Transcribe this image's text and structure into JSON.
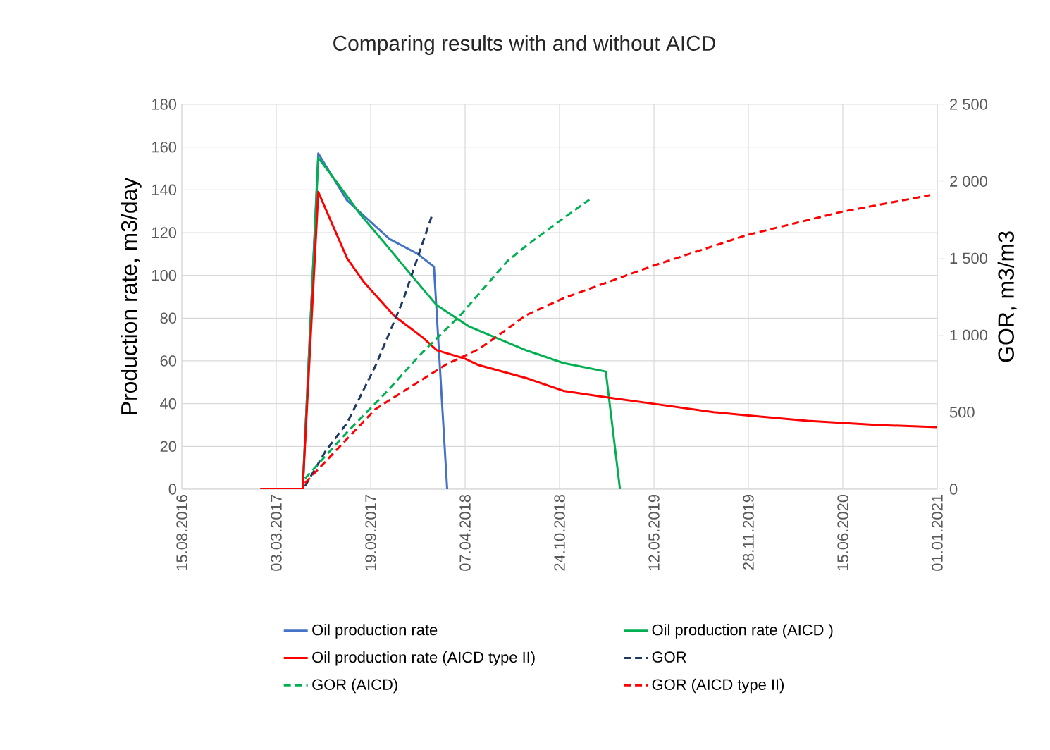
{
  "chart_data": {
    "type": "line",
    "title": "Comparing results with and without AICD",
    "ylabel": "Production rate, m3/day",
    "y2label": "GOR, m3/m3",
    "xlim": [
      "2016-08-15",
      "2021-01-01"
    ],
    "xticks": [
      {
        "value": "2016-08-15",
        "label": "15.08.2016"
      },
      {
        "value": "2017-03-03",
        "label": "03.03.2017"
      },
      {
        "value": "2017-09-19",
        "label": "19.09.2017"
      },
      {
        "value": "2018-04-07",
        "label": "07.04.2018"
      },
      {
        "value": "2018-10-24",
        "label": "24.10.2018"
      },
      {
        "value": "2019-05-12",
        "label": "12.05.2019"
      },
      {
        "value": "2019-11-28",
        "label": "28.11.2019"
      },
      {
        "value": "2020-06-15",
        "label": "15.06.2020"
      },
      {
        "value": "2021-01-01",
        "label": "01.01.2021"
      }
    ],
    "ylim": [
      0,
      180
    ],
    "yticks": [
      0,
      20,
      40,
      60,
      80,
      100,
      120,
      140,
      160,
      180
    ],
    "y2lim": [
      0,
      2500
    ],
    "y2ticks": [
      0,
      500,
      {
        "value": 1000,
        "label": "1 000"
      },
      {
        "value": 1500,
        "label": "1 500"
      },
      {
        "value": 2000,
        "label": "2 000"
      },
      {
        "value": 2500,
        "label": "2 500"
      }
    ],
    "grid": true,
    "legend": "bottom",
    "marker": "none",
    "series": [
      {
        "name": "Oil production rate",
        "color": "#4472c4",
        "line_style": "solid",
        "x": [
          "2017-04-28",
          "2017-05-31",
          "2017-07-31",
          "2017-09-09",
          "2017-10-29",
          "2017-12-28",
          "2018-01-31",
          "2018-02-28"
        ],
        "values": [
          0,
          157,
          135,
          127,
          117,
          110,
          104,
          0
        ]
      },
      {
        "name": "Oil production rate  (AICD )",
        "color": "#00b050",
        "line_style": "solid",
        "x": [
          "2017-04-28",
          "2017-05-31",
          "2017-07-11",
          "2017-08-30",
          "2017-10-19",
          "2017-12-18",
          "2018-02-06",
          "2018-04-16",
          "2018-08-14",
          "2018-11-01",
          "2019-01-30",
          "2019-03-01"
        ],
        "values": [
          0,
          155,
          143,
          128,
          115,
          99,
          86,
          76,
          65,
          59,
          55,
          0
        ]
      },
      {
        "name": "Oil production rate (AICD type II)",
        "color": "#ff0000",
        "line_style": "solid",
        "x": [
          "2017-01-28",
          "2017-04-28",
          "2017-05-31",
          "2017-07-31",
          "2017-09-04",
          "2017-11-08",
          "2018-01-07",
          "2018-02-06",
          "2018-04-07",
          "2018-05-06",
          "2018-08-14",
          "2018-11-01",
          "2019-01-30",
          "2019-05-09",
          "2019-09-15",
          "2019-11-24",
          "2020-04-01",
          "2020-08-29",
          "2020-12-31"
        ],
        "values": [
          0,
          0,
          139,
          108,
          97,
          81,
          71,
          65,
          61,
          58,
          52,
          46,
          43,
          40,
          36,
          34.5,
          32,
          30,
          29
        ]
      },
      {
        "name": "GOR",
        "color": "#1f3864",
        "line_style": "dashed",
        "axis": "y2",
        "x": [
          "2017-05-03",
          "2017-06-16",
          "2017-07-31",
          "2017-09-29",
          "2017-11-27",
          "2018-01-27"
        ],
        "values": [
          20,
          250,
          430,
          800,
          1230,
          1780
        ]
      },
      {
        "name": "GOR  (AICD)",
        "color": "#00b050",
        "line_style": "dashed",
        "axis": "y2",
        "x": [
          "2017-05-03",
          "2017-07-31",
          "2017-10-19",
          "2018-01-07",
          "2018-03-28",
          "2018-07-05",
          "2018-08-14",
          "2018-11-01",
          "2018-12-26"
        ],
        "values": [
          70,
          370,
          620,
          890,
          1130,
          1480,
          1580,
          1760,
          1880
        ]
      },
      {
        "name": "GOR  (AICD type II)",
        "color": "#ff0000",
        "line_style": "dashed",
        "axis": "y2",
        "x": [
          "2017-05-03",
          "2017-09-29",
          "2018-02-26",
          "2018-05-06",
          "2018-07-05",
          "2018-08-14",
          "2018-11-01",
          "2019-05-09",
          "2019-11-24",
          "2020-06-10",
          "2020-12-17"
        ],
        "values": [
          40,
          520,
          810,
          910,
          1040,
          1130,
          1240,
          1450,
          1650,
          1800,
          1910
        ]
      }
    ]
  }
}
